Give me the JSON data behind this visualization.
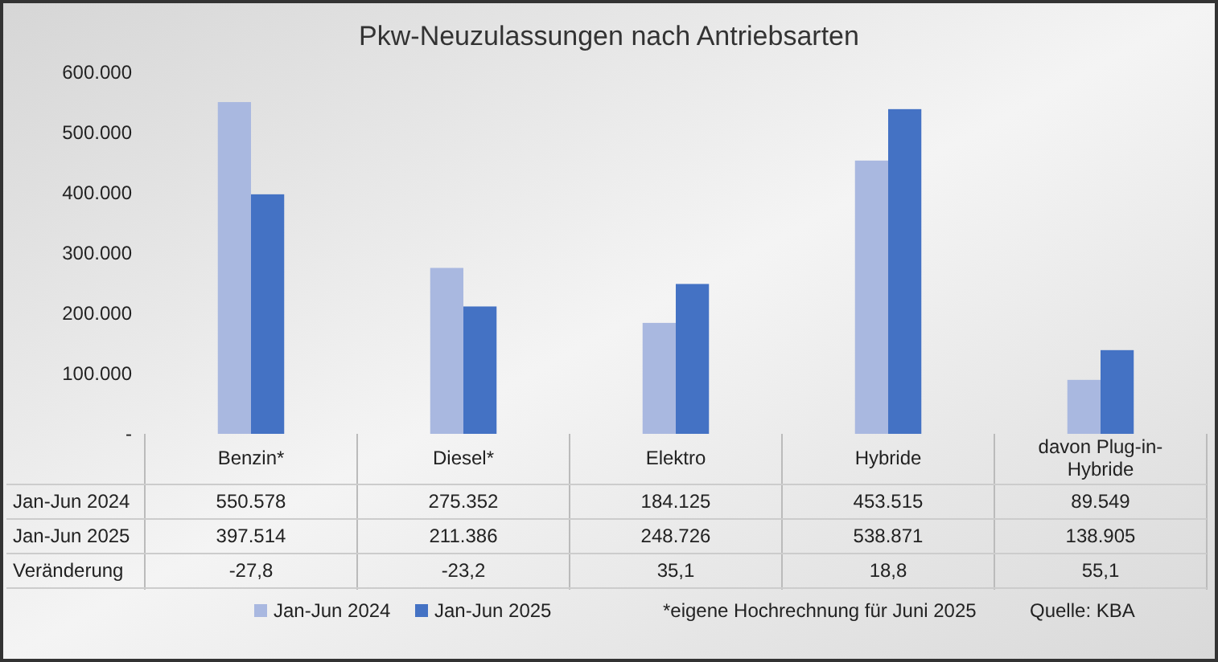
{
  "chart_data": {
    "type": "bar",
    "title": "Pkw-Neuzulassungen nach Antriebsarten",
    "categories": [
      "Benzin*",
      "Diesel*",
      "Elektro",
      "Hybride",
      "davon Plug-in-Hybride"
    ],
    "series": [
      {
        "name": "Jan-Jun 2024",
        "color": "#a9b8e0",
        "values": [
          550578,
          275352,
          184125,
          453515,
          89549
        ],
        "value_labels": [
          "550.578",
          "275.352",
          "184.125",
          "453.515",
          "89.549"
        ]
      },
      {
        "name": "Jan-Jun 2025",
        "color": "#4472c4",
        "values": [
          397514,
          211386,
          248726,
          538871,
          138905
        ],
        "value_labels": [
          "397.514",
          "211.386",
          "248.726",
          "538.871",
          "138.905"
        ]
      }
    ],
    "ylim": [
      0,
      600000
    ],
    "yticks": [
      {
        "value": 0,
        "label": "-"
      },
      {
        "value": 100000,
        "label": "100.000"
      },
      {
        "value": 200000,
        "label": "200.000"
      },
      {
        "value": 300000,
        "label": "300.000"
      },
      {
        "value": 400000,
        "label": "400.000"
      },
      {
        "value": 500000,
        "label": "500.000"
      },
      {
        "value": 600000,
        "label": "600.000"
      }
    ],
    "grid": false,
    "legend": "bottom",
    "annotations": [
      "Veränderung",
      "-27,8",
      "-23,2",
      "35,1",
      "18,8",
      "55,1",
      "*eigene Hochrechnung für Juni 2025",
      "Quelle: KBA"
    ]
  }
}
